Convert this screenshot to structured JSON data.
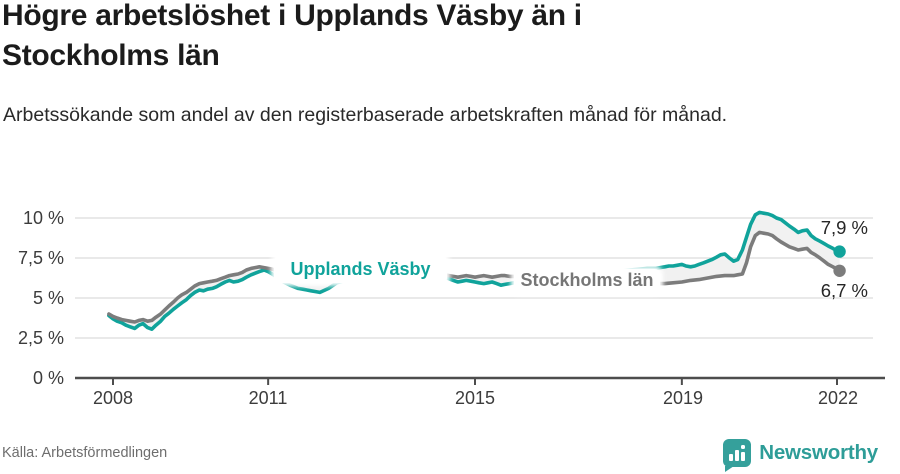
{
  "header": {
    "title_line1": "Högre arbetslöshet i Upplands Väsby än i",
    "title_line2": "Stockholms län",
    "subtitle": "Arbetssökande som andel av den registerbaserade arbetskraften månad för månad."
  },
  "footer": {
    "source": "Källa: Arbetsförmedlingen",
    "brand": "Newsworthy",
    "logo_icon": "bar-chart-speech-bubble-icon",
    "brand_color": "#2e9d98"
  },
  "chart_data": {
    "type": "line",
    "unit": "%",
    "grid": true,
    "background": "#ffffff",
    "between_series_fill": "#f1f1f1",
    "x_axis": {
      "ticks": [
        2008,
        2011,
        2015,
        2019,
        2022
      ],
      "range_years": [
        2007.9,
        2022.7
      ]
    },
    "y_axis": {
      "tick_labels": [
        "0 %",
        "2,5 %",
        "5 %",
        "7,5 %",
        "10 %"
      ],
      "tick_values": [
        0,
        2.5,
        5,
        7.5,
        10
      ],
      "ylim": [
        0,
        10.6
      ]
    },
    "series": [
      {
        "name": "Upplands Väsby",
        "color": "#10a39b",
        "end_label": "7,9 %",
        "end_value": 7.9,
        "points": [
          [
            2007.92,
            3.9
          ],
          [
            2008.0,
            3.7
          ],
          [
            2008.08,
            3.55
          ],
          [
            2008.17,
            3.45
          ],
          [
            2008.25,
            3.3
          ],
          [
            2008.33,
            3.2
          ],
          [
            2008.42,
            3.1
          ],
          [
            2008.5,
            3.3
          ],
          [
            2008.58,
            3.4
          ],
          [
            2008.67,
            3.15
          ],
          [
            2008.75,
            3.05
          ],
          [
            2008.83,
            3.3
          ],
          [
            2008.92,
            3.55
          ],
          [
            2009.0,
            3.85
          ],
          [
            2009.08,
            4.05
          ],
          [
            2009.17,
            4.3
          ],
          [
            2009.25,
            4.5
          ],
          [
            2009.33,
            4.7
          ],
          [
            2009.42,
            4.9
          ],
          [
            2009.5,
            5.15
          ],
          [
            2009.58,
            5.35
          ],
          [
            2009.67,
            5.5
          ],
          [
            2009.75,
            5.45
          ],
          [
            2009.83,
            5.55
          ],
          [
            2009.92,
            5.6
          ],
          [
            2010.0,
            5.7
          ],
          [
            2010.08,
            5.85
          ],
          [
            2010.17,
            6.0
          ],
          [
            2010.25,
            6.1
          ],
          [
            2010.33,
            6.0
          ],
          [
            2010.42,
            6.05
          ],
          [
            2010.5,
            6.15
          ],
          [
            2010.58,
            6.3
          ],
          [
            2010.67,
            6.45
          ],
          [
            2010.75,
            6.55
          ],
          [
            2010.83,
            6.65
          ],
          [
            2010.92,
            6.75
          ],
          [
            2011.0,
            6.65
          ],
          [
            2011.08,
            6.5
          ],
          [
            2011.17,
            6.3
          ],
          [
            2011.25,
            6.1
          ],
          [
            2011.33,
            5.95
          ],
          [
            2011.42,
            5.8
          ],
          [
            2011.5,
            5.7
          ],
          [
            2011.58,
            5.6
          ],
          [
            2011.67,
            5.55
          ],
          [
            2011.75,
            5.5
          ],
          [
            2011.83,
            5.45
          ],
          [
            2011.92,
            5.4
          ],
          [
            2012.0,
            5.35
          ],
          [
            2012.17,
            5.6
          ],
          [
            2012.33,
            5.95
          ],
          [
            2012.5,
            6.1
          ],
          [
            2012.75,
            6.15
          ],
          [
            2013.0,
            6.2
          ],
          [
            2013.25,
            6.25
          ],
          [
            2013.5,
            6.3
          ],
          [
            2013.75,
            6.35
          ],
          [
            2014.0,
            6.45
          ],
          [
            2014.17,
            6.55
          ],
          [
            2014.33,
            6.45
          ],
          [
            2014.42,
            6.3
          ],
          [
            2014.5,
            6.2
          ],
          [
            2014.58,
            6.1
          ],
          [
            2014.67,
            6.0
          ],
          [
            2014.75,
            6.05
          ],
          [
            2014.83,
            6.1
          ],
          [
            2014.92,
            6.05
          ],
          [
            2015.0,
            6.0
          ],
          [
            2015.08,
            5.95
          ],
          [
            2015.17,
            5.9
          ],
          [
            2015.25,
            5.95
          ],
          [
            2015.33,
            6.0
          ],
          [
            2015.42,
            5.9
          ],
          [
            2015.5,
            5.8
          ],
          [
            2015.58,
            5.85
          ],
          [
            2015.67,
            5.9
          ],
          [
            2015.75,
            5.95
          ],
          [
            2016.0,
            6.05
          ],
          [
            2016.25,
            6.15
          ],
          [
            2016.5,
            6.25
          ],
          [
            2016.75,
            6.35
          ],
          [
            2017.0,
            6.45
          ],
          [
            2017.25,
            6.5
          ],
          [
            2017.5,
            6.6
          ],
          [
            2017.75,
            6.65
          ],
          [
            2018.0,
            6.75
          ],
          [
            2018.17,
            6.8
          ],
          [
            2018.33,
            6.85
          ],
          [
            2018.5,
            6.85
          ],
          [
            2018.58,
            6.9
          ],
          [
            2018.67,
            6.95
          ],
          [
            2018.75,
            7.0
          ],
          [
            2018.83,
            7.0
          ],
          [
            2018.92,
            7.05
          ],
          [
            2019.0,
            7.1
          ],
          [
            2019.08,
            7.0
          ],
          [
            2019.17,
            6.95
          ],
          [
            2019.25,
            7.0
          ],
          [
            2019.33,
            7.1
          ],
          [
            2019.42,
            7.2
          ],
          [
            2019.5,
            7.3
          ],
          [
            2019.58,
            7.4
          ],
          [
            2019.67,
            7.55
          ],
          [
            2019.75,
            7.7
          ],
          [
            2019.83,
            7.75
          ],
          [
            2019.92,
            7.5
          ],
          [
            2020.0,
            7.3
          ],
          [
            2020.08,
            7.4
          ],
          [
            2020.17,
            8.0
          ],
          [
            2020.25,
            8.8
          ],
          [
            2020.33,
            9.6
          ],
          [
            2020.42,
            10.2
          ],
          [
            2020.5,
            10.35
          ],
          [
            2020.58,
            10.3
          ],
          [
            2020.67,
            10.25
          ],
          [
            2020.75,
            10.15
          ],
          [
            2020.83,
            10.0
          ],
          [
            2020.92,
            9.9
          ],
          [
            2021.0,
            9.7
          ],
          [
            2021.08,
            9.5
          ],
          [
            2021.17,
            9.3
          ],
          [
            2021.25,
            9.1
          ],
          [
            2021.33,
            9.2
          ],
          [
            2021.42,
            9.25
          ],
          [
            2021.5,
            8.9
          ],
          [
            2021.58,
            8.7
          ],
          [
            2021.67,
            8.55
          ],
          [
            2021.75,
            8.4
          ],
          [
            2021.83,
            8.25
          ],
          [
            2021.92,
            8.1
          ],
          [
            2022.0,
            7.95
          ],
          [
            2022.05,
            7.9
          ]
        ]
      },
      {
        "name": "Stockholms län",
        "color": "#7c7c7c",
        "end_label": "6,7 %",
        "end_value": 6.7,
        "points": [
          [
            2007.92,
            4.0
          ],
          [
            2008.0,
            3.85
          ],
          [
            2008.08,
            3.75
          ],
          [
            2008.17,
            3.65
          ],
          [
            2008.25,
            3.6
          ],
          [
            2008.33,
            3.55
          ],
          [
            2008.42,
            3.5
          ],
          [
            2008.5,
            3.6
          ],
          [
            2008.58,
            3.65
          ],
          [
            2008.67,
            3.55
          ],
          [
            2008.75,
            3.6
          ],
          [
            2008.83,
            3.8
          ],
          [
            2008.92,
            4.0
          ],
          [
            2009.0,
            4.25
          ],
          [
            2009.08,
            4.5
          ],
          [
            2009.17,
            4.75
          ],
          [
            2009.25,
            5.0
          ],
          [
            2009.33,
            5.2
          ],
          [
            2009.42,
            5.35
          ],
          [
            2009.5,
            5.55
          ],
          [
            2009.58,
            5.75
          ],
          [
            2009.67,
            5.9
          ],
          [
            2009.75,
            5.95
          ],
          [
            2009.83,
            6.0
          ],
          [
            2009.92,
            6.05
          ],
          [
            2010.0,
            6.1
          ],
          [
            2010.08,
            6.2
          ],
          [
            2010.17,
            6.3
          ],
          [
            2010.25,
            6.4
          ],
          [
            2010.33,
            6.45
          ],
          [
            2010.42,
            6.5
          ],
          [
            2010.5,
            6.6
          ],
          [
            2010.58,
            6.75
          ],
          [
            2010.67,
            6.85
          ],
          [
            2010.75,
            6.9
          ],
          [
            2010.83,
            6.95
          ],
          [
            2010.92,
            6.9
          ],
          [
            2011.0,
            6.85
          ],
          [
            2011.08,
            6.8
          ],
          [
            2011.17,
            6.7
          ],
          [
            2011.25,
            6.6
          ],
          [
            2011.33,
            6.55
          ],
          [
            2011.42,
            6.5
          ],
          [
            2011.5,
            6.45
          ],
          [
            2011.67,
            6.4
          ],
          [
            2011.83,
            6.45
          ],
          [
            2012.0,
            6.45
          ],
          [
            2012.25,
            6.5
          ],
          [
            2012.5,
            6.55
          ],
          [
            2012.75,
            6.6
          ],
          [
            2013.0,
            6.65
          ],
          [
            2013.25,
            6.65
          ],
          [
            2013.5,
            6.6
          ],
          [
            2013.75,
            6.6
          ],
          [
            2014.0,
            6.6
          ],
          [
            2014.17,
            6.6
          ],
          [
            2014.33,
            6.55
          ],
          [
            2014.42,
            6.45
          ],
          [
            2014.5,
            6.4
          ],
          [
            2014.58,
            6.35
          ],
          [
            2014.67,
            6.3
          ],
          [
            2014.75,
            6.35
          ],
          [
            2014.83,
            6.4
          ],
          [
            2014.92,
            6.35
          ],
          [
            2015.0,
            6.3
          ],
          [
            2015.08,
            6.35
          ],
          [
            2015.17,
            6.4
          ],
          [
            2015.25,
            6.35
          ],
          [
            2015.33,
            6.3
          ],
          [
            2015.42,
            6.35
          ],
          [
            2015.5,
            6.4
          ],
          [
            2015.58,
            6.4
          ],
          [
            2015.67,
            6.35
          ],
          [
            2015.75,
            6.35
          ],
          [
            2016.0,
            6.3
          ],
          [
            2016.25,
            6.25
          ],
          [
            2016.5,
            6.2
          ],
          [
            2016.75,
            6.15
          ],
          [
            2017.0,
            6.1
          ],
          [
            2017.25,
            6.05
          ],
          [
            2017.5,
            6.0
          ],
          [
            2017.75,
            5.95
          ],
          [
            2018.0,
            5.9
          ],
          [
            2018.25,
            5.9
          ],
          [
            2018.5,
            5.9
          ],
          [
            2018.67,
            5.9
          ],
          [
            2018.83,
            5.95
          ],
          [
            2019.0,
            6.0
          ],
          [
            2019.17,
            6.1
          ],
          [
            2019.33,
            6.15
          ],
          [
            2019.5,
            6.25
          ],
          [
            2019.67,
            6.35
          ],
          [
            2019.83,
            6.4
          ],
          [
            2020.0,
            6.4
          ],
          [
            2020.08,
            6.45
          ],
          [
            2020.17,
            6.5
          ],
          [
            2020.25,
            7.2
          ],
          [
            2020.33,
            8.2
          ],
          [
            2020.42,
            8.9
          ],
          [
            2020.5,
            9.1
          ],
          [
            2020.58,
            9.05
          ],
          [
            2020.67,
            9.0
          ],
          [
            2020.75,
            8.9
          ],
          [
            2020.83,
            8.7
          ],
          [
            2020.92,
            8.5
          ],
          [
            2021.0,
            8.35
          ],
          [
            2021.08,
            8.2
          ],
          [
            2021.17,
            8.1
          ],
          [
            2021.25,
            8.0
          ],
          [
            2021.33,
            8.05
          ],
          [
            2021.42,
            8.1
          ],
          [
            2021.5,
            7.85
          ],
          [
            2021.58,
            7.7
          ],
          [
            2021.67,
            7.5
          ],
          [
            2021.75,
            7.3
          ],
          [
            2021.83,
            7.1
          ],
          [
            2021.92,
            6.95
          ],
          [
            2022.0,
            6.8
          ],
          [
            2022.05,
            6.7
          ]
        ]
      }
    ]
  }
}
